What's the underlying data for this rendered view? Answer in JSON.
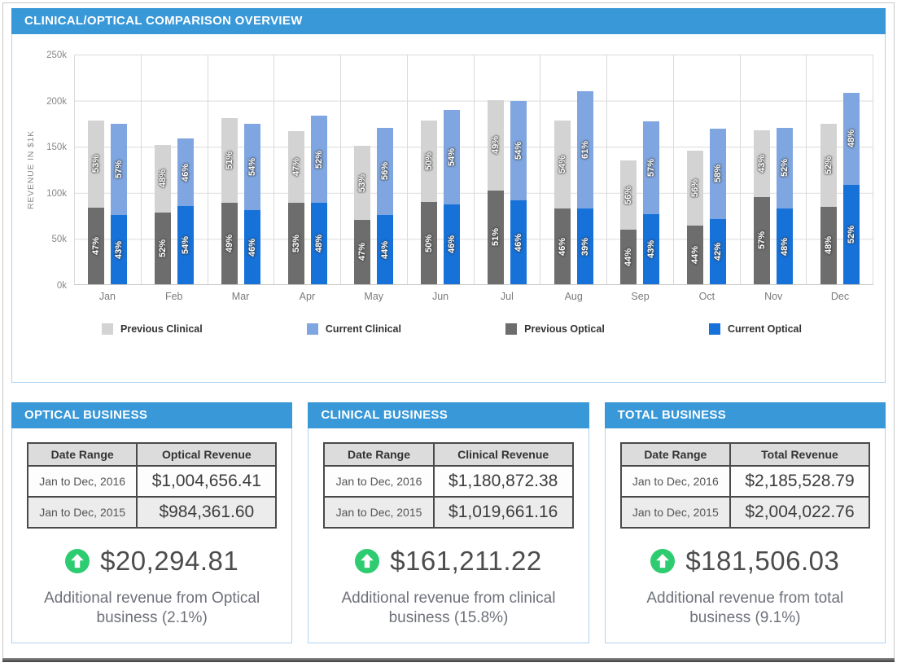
{
  "chart_panel": {
    "title": "CLINICAL/OPTICAL COMPARISON OVERVIEW",
    "chart_data": {
      "type": "bar",
      "stacked": true,
      "title": "CLINICAL/OPTICAL COMPARISON OVERVIEW",
      "xlabel": "",
      "ylabel": "REVENUE IN $1K",
      "ylim": [
        0,
        250
      ],
      "yticks": [
        "0k",
        "50k",
        "100k",
        "150k",
        "200k",
        "250k"
      ],
      "grid": true,
      "legend_position": "bottom",
      "categories": [
        "Jan",
        "Feb",
        "Mar",
        "Apr",
        "May",
        "Jun",
        "Jul",
        "Aug",
        "Sep",
        "Oct",
        "Nov",
        "Dec"
      ],
      "series": [
        {
          "name": "Previous Clinical",
          "color": "#d3d3d3",
          "stack": "previous",
          "values": [
            95,
            73,
            92,
            78,
            80,
            89,
            98,
            96,
            75,
            81,
            72,
            90
          ],
          "pct_labels": [
            "53%",
            "48%",
            "51%",
            "47%",
            "53%",
            "50%",
            "49%",
            "54%",
            "56%",
            "56%",
            "43%",
            "52%"
          ]
        },
        {
          "name": "Current Clinical",
          "color": "#7fa6e0",
          "stack": "current",
          "values": [
            99,
            73,
            94,
            95,
            95,
            102,
            108,
            127,
            101,
            98,
            88,
            100
          ],
          "pct_labels": [
            "57%",
            "46%",
            "54%",
            "52%",
            "56%",
            "54%",
            "54%",
            "61%",
            "57%",
            "58%",
            "52%",
            "48%"
          ]
        },
        {
          "name": "Previous Optical",
          "color": "#6d6d6d",
          "stack": "previous",
          "values": [
            83,
            78,
            88,
            88,
            70,
            89,
            102,
            82,
            59,
            64,
            95,
            84
          ],
          "pct_labels": [
            "47%",
            "52%",
            "49%",
            "53%",
            "47%",
            "50%",
            "51%",
            "46%",
            "44%",
            "44%",
            "57%",
            "48%"
          ]
        },
        {
          "name": "Current Optical",
          "color": "#1671d8",
          "stack": "current",
          "values": [
            75,
            85,
            80,
            88,
            75,
            87,
            91,
            82,
            76,
            71,
            82,
            108
          ],
          "pct_labels": [
            "43%",
            "54%",
            "46%",
            "48%",
            "44%",
            "46%",
            "46%",
            "39%",
            "43%",
            "42%",
            "48%",
            "52%"
          ]
        }
      ]
    }
  },
  "panels": [
    {
      "title": "OPTICAL BUSINESS",
      "columns": [
        "Date Range",
        "Optical Revenue"
      ],
      "rows": [
        [
          "Jan to Dec, 2016",
          "$1,004,656.41"
        ],
        [
          "Jan to Dec, 2015",
          "$984,361.60"
        ]
      ],
      "delta": "$20,294.81",
      "description": "Additional revenue from Optical business (2.1%)"
    },
    {
      "title": "CLINICAL BUSINESS",
      "columns": [
        "Date Range",
        "Clinical Revenue"
      ],
      "rows": [
        [
          "Jan to Dec, 2016",
          "$1,180,872.38"
        ],
        [
          "Jan to Dec, 2015",
          "$1,019,661.16"
        ]
      ],
      "delta": "$161,211.22",
      "description": "Additional revenue from clinical business (15.8%)"
    },
    {
      "title": "TOTAL BUSINESS",
      "columns": [
        "Date Range",
        "Total Revenue"
      ],
      "rows": [
        [
          "Jan to Dec, 2016",
          "$2,185,528.79"
        ],
        [
          "Jan to Dec, 2015",
          "$2,004,022.76"
        ]
      ],
      "delta": "$181,506.03",
      "description": "Additional revenue from total business (9.1%)"
    }
  ],
  "colors": {
    "header_blue": "#3898d8",
    "panel_border": "#aed3f2",
    "previous_clinical": "#d3d3d3",
    "current_clinical": "#7fa6e0",
    "previous_optical": "#6d6d6d",
    "current_optical": "#1671d8",
    "delta_green": "#2ecc71"
  }
}
